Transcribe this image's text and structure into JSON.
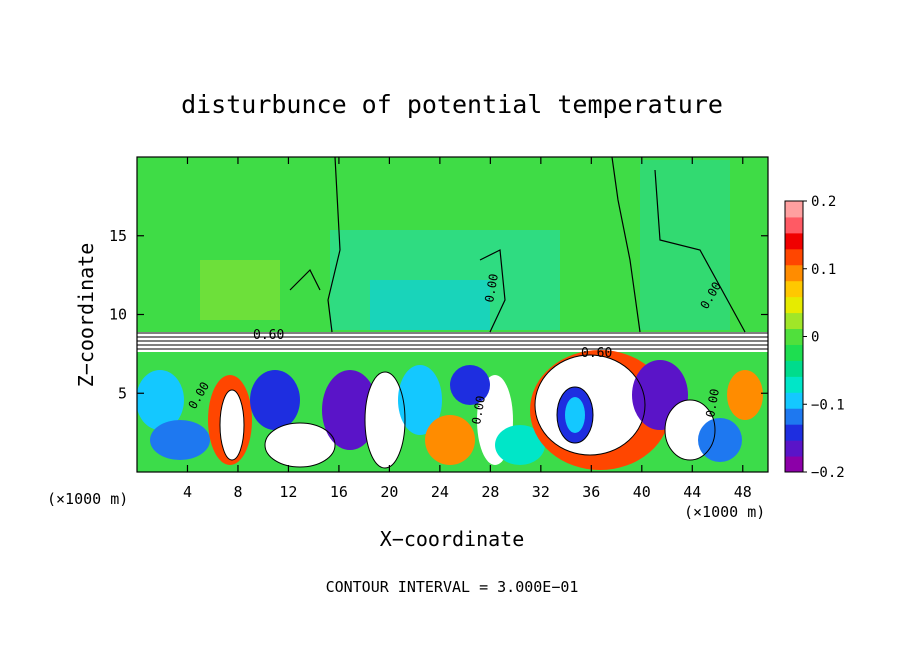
{
  "chart_data": {
    "type": "heatmap",
    "title": "disturbunce of potential temperature",
    "xlabel": "X−coordinate",
    "ylabel": "Z−coordinate",
    "x_unit_left": "(×1000 m)",
    "x_unit_right": "(×1000 m)",
    "xlim": [
      0,
      50
    ],
    "ylim": [
      0,
      20
    ],
    "xticks": [
      4,
      8,
      12,
      16,
      20,
      24,
      28,
      32,
      36,
      40,
      44,
      48
    ],
    "yticks": [
      5,
      10,
      15
    ],
    "colorbar": {
      "range": [
        -0.2,
        0.2
      ],
      "ticks": [
        {
          "value": 0.2,
          "label": "0.2"
        },
        {
          "value": 0.1,
          "label": "0.1"
        },
        {
          "value": 0,
          "label": "0"
        },
        {
          "value": -0.1,
          "label": "−0.1"
        },
        {
          "value": -0.2,
          "label": "−0.2"
        }
      ],
      "colors": [
        "#8c00a8",
        "#5a14c8",
        "#1e2ee0",
        "#1e78f0",
        "#14c8ff",
        "#00e6c8",
        "#00dc8c",
        "#1ede50",
        "#50e03c",
        "#a0e628",
        "#e6eb00",
        "#ffc800",
        "#ff8c00",
        "#ff4600",
        "#f00000",
        "#ff5a64",
        "#ffa0a0"
      ]
    },
    "contour_labels": [
      "0.60",
      "0.60",
      "0.00",
      "0.00",
      "0.00",
      "0.00",
      "0.00"
    ],
    "footer": "CONTOUR INTERVAL = 3.000E−01"
  }
}
